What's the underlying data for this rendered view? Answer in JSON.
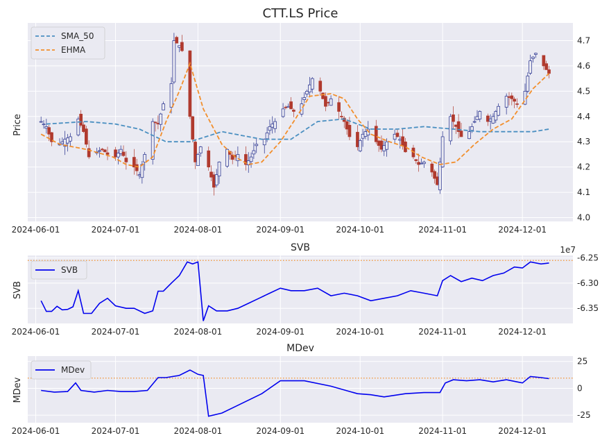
{
  "chart_data": [
    {
      "type": "candlestick",
      "title": "CTT.LS Price",
      "xlabel": "",
      "ylabel": "Price",
      "x_tick_labels": [
        "2024-06-01",
        "2024-07-01",
        "2024-08-01",
        "2024-09-01",
        "2024-10-01",
        "2024-11-01",
        "2024-12-01"
      ],
      "y_ticks": [
        4.0,
        4.1,
        4.2,
        4.3,
        4.4,
        4.5,
        4.6,
        4.7
      ],
      "ylim": [
        3.985,
        4.77
      ],
      "xlim": [
        "2024-05-29",
        "2024-12-20"
      ],
      "grid": true,
      "legend": {
        "placement": "top-left",
        "entries": [
          "SMA_50",
          "EHMA"
        ]
      },
      "colors": {
        "up": "#1f2a8a",
        "down": "#b03a2e",
        "sma": "#4a8fc1",
        "ehma": "#f28e2b"
      },
      "candles_anchor": [
        [
          "2024-06-03",
          4.38
        ],
        [
          "2024-06-05",
          4.36
        ],
        [
          "2024-06-07",
          4.3
        ],
        [
          "2024-06-10",
          4.29
        ],
        [
          "2024-06-12",
          4.31
        ],
        [
          "2024-06-14",
          4.32
        ],
        [
          "2024-06-17",
          4.39
        ],
        [
          "2024-06-19",
          4.34
        ],
        [
          "2024-06-21",
          4.24
        ],
        [
          "2024-06-24",
          4.26
        ],
        [
          "2024-06-26",
          4.27
        ],
        [
          "2024-06-28",
          4.25
        ],
        [
          "2024-07-01",
          4.24
        ],
        [
          "2024-07-03",
          4.27
        ],
        [
          "2024-07-05",
          4.22
        ],
        [
          "2024-07-08",
          4.2
        ],
        [
          "2024-07-10",
          4.17
        ],
        [
          "2024-07-12",
          4.25
        ],
        [
          "2024-07-15",
          4.38
        ],
        [
          "2024-07-17",
          4.37
        ],
        [
          "2024-07-19",
          4.45
        ],
        [
          "2024-07-22",
          4.53
        ],
        [
          "2024-07-23",
          4.7
        ],
        [
          "2024-07-25",
          4.68
        ],
        [
          "2024-07-26",
          4.66
        ],
        [
          "2024-07-29",
          4.4
        ],
        [
          "2024-07-31",
          4.22
        ],
        [
          "2024-08-02",
          4.28
        ],
        [
          "2024-08-05",
          4.2
        ],
        [
          "2024-08-07",
          4.12
        ],
        [
          "2024-08-09",
          4.22
        ],
        [
          "2024-08-12",
          4.27
        ],
        [
          "2024-08-14",
          4.23
        ],
        [
          "2024-08-16",
          4.25
        ],
        [
          "2024-08-19",
          4.21
        ],
        [
          "2024-08-21",
          4.24
        ],
        [
          "2024-08-23",
          4.29
        ],
        [
          "2024-08-26",
          4.31
        ],
        [
          "2024-08-28",
          4.36
        ],
        [
          "2024-08-30",
          4.38
        ],
        [
          "2024-09-02",
          4.43
        ],
        [
          "2024-09-04",
          4.44
        ],
        [
          "2024-09-06",
          4.42
        ],
        [
          "2024-09-09",
          4.45
        ],
        [
          "2024-09-11",
          4.5
        ],
        [
          "2024-09-13",
          4.55
        ],
        [
          "2024-09-16",
          4.5
        ],
        [
          "2024-09-18",
          4.44
        ],
        [
          "2024-09-20",
          4.47
        ],
        [
          "2024-09-23",
          4.42
        ],
        [
          "2024-09-25",
          4.38
        ],
        [
          "2024-09-27",
          4.32
        ],
        [
          "2024-09-30",
          4.28
        ],
        [
          "2024-10-02",
          4.33
        ],
        [
          "2024-10-04",
          4.35
        ],
        [
          "2024-10-07",
          4.3
        ],
        [
          "2024-10-09",
          4.27
        ],
        [
          "2024-10-11",
          4.3
        ],
        [
          "2024-10-14",
          4.33
        ],
        [
          "2024-10-16",
          4.31
        ],
        [
          "2024-10-18",
          4.26
        ],
        [
          "2024-10-21",
          4.24
        ],
        [
          "2024-10-23",
          4.21
        ],
        [
          "2024-10-25",
          4.22
        ],
        [
          "2024-10-28",
          4.18
        ],
        [
          "2024-10-30",
          4.13
        ],
        [
          "2024-10-31",
          4.22
        ],
        [
          "2024-11-01",
          4.32
        ],
        [
          "2024-11-04",
          4.4
        ],
        [
          "2024-11-06",
          4.36
        ],
        [
          "2024-11-08",
          4.32
        ],
        [
          "2024-11-11",
          4.34
        ],
        [
          "2024-11-13",
          4.38
        ],
        [
          "2024-11-15",
          4.42
        ],
        [
          "2024-11-18",
          4.38
        ],
        [
          "2024-11-20",
          4.4
        ],
        [
          "2024-11-22",
          4.44
        ],
        [
          "2024-11-25",
          4.48
        ],
        [
          "2024-11-27",
          4.47
        ],
        [
          "2024-11-29",
          4.45
        ],
        [
          "2024-12-02",
          4.5
        ],
        [
          "2024-12-04",
          4.62
        ],
        [
          "2024-12-06",
          4.65
        ],
        [
          "2024-12-09",
          4.6
        ],
        [
          "2024-12-11",
          4.57
        ]
      ],
      "series": [
        {
          "name": "SMA_50",
          "x": [
            "2024-06-05",
            "2024-06-20",
            "2024-07-01",
            "2024-07-10",
            "2024-07-20",
            "2024-07-29",
            "2024-08-10",
            "2024-08-25",
            "2024-09-05",
            "2024-09-15",
            "2024-09-25",
            "2024-10-05",
            "2024-10-15",
            "2024-10-25",
            "2024-11-05",
            "2024-11-15",
            "2024-11-25",
            "2024-12-05",
            "2024-12-11"
          ],
          "y": [
            4.37,
            4.38,
            4.37,
            4.35,
            4.3,
            4.3,
            4.34,
            4.31,
            4.31,
            4.38,
            4.39,
            4.35,
            4.35,
            4.36,
            4.35,
            4.34,
            4.34,
            4.34,
            4.35
          ]
        },
        {
          "name": "EHMA",
          "x": [
            "2024-06-03",
            "2024-06-10",
            "2024-06-20",
            "2024-06-30",
            "2024-07-05",
            "2024-07-10",
            "2024-07-15",
            "2024-07-20",
            "2024-07-25",
            "2024-07-29",
            "2024-08-03",
            "2024-08-10",
            "2024-08-15",
            "2024-08-20",
            "2024-08-25",
            "2024-09-01",
            "2024-09-06",
            "2024-09-12",
            "2024-09-20",
            "2024-09-25",
            "2024-09-30",
            "2024-10-05",
            "2024-10-12",
            "2024-10-18",
            "2024-10-24",
            "2024-10-31",
            "2024-11-06",
            "2024-11-13",
            "2024-11-20",
            "2024-11-27",
            "2024-12-01",
            "2024-12-05",
            "2024-12-11"
          ],
          "y": [
            4.33,
            4.29,
            4.27,
            4.24,
            4.21,
            4.2,
            4.24,
            4.38,
            4.5,
            4.61,
            4.43,
            4.29,
            4.24,
            4.21,
            4.22,
            4.3,
            4.38,
            4.48,
            4.49,
            4.47,
            4.39,
            4.33,
            4.3,
            4.28,
            4.24,
            4.21,
            4.22,
            4.29,
            4.35,
            4.39,
            4.45,
            4.51,
            4.57
          ]
        }
      ]
    },
    {
      "type": "line",
      "title": "SVB",
      "xlabel": "",
      "ylabel": "SVB",
      "offset_text": "1e7",
      "x_tick_labels": [
        "2024-06-01",
        "2024-07-01",
        "2024-08-01",
        "2024-09-01",
        "2024-10-01",
        "2024-11-01",
        "2024-12-01"
      ],
      "y_ticks": [
        -6.35,
        -6.3,
        -6.25
      ],
      "y_units": "1e7",
      "ylim": [
        -6.38,
        -6.245
      ],
      "grid": true,
      "legend": {
        "placement": "top-left",
        "entries": [
          "SVB"
        ]
      },
      "reference_line": {
        "y": -6.255,
        "style": "dotted",
        "color": "#f28e2b"
      },
      "series": [
        {
          "name": "SVB",
          "x": [
            "2024-06-03",
            "2024-06-05",
            "2024-06-07",
            "2024-06-09",
            "2024-06-11",
            "2024-06-13",
            "2024-06-15",
            "2024-06-17",
            "2024-06-19",
            "2024-06-22",
            "2024-06-25",
            "2024-06-28",
            "2024-07-01",
            "2024-07-05",
            "2024-07-08",
            "2024-07-12",
            "2024-07-15",
            "2024-07-17",
            "2024-07-19",
            "2024-07-22",
            "2024-07-25",
            "2024-07-28",
            "2024-07-30",
            "2024-08-01",
            "2024-08-03",
            "2024-08-05",
            "2024-08-08",
            "2024-08-12",
            "2024-08-16",
            "2024-08-20",
            "2024-08-24",
            "2024-08-28",
            "2024-09-01",
            "2024-09-05",
            "2024-09-10",
            "2024-09-15",
            "2024-09-20",
            "2024-09-25",
            "2024-09-30",
            "2024-10-05",
            "2024-10-10",
            "2024-10-15",
            "2024-10-20",
            "2024-10-25",
            "2024-10-30",
            "2024-11-01",
            "2024-11-04",
            "2024-11-08",
            "2024-11-12",
            "2024-11-16",
            "2024-11-20",
            "2024-11-24",
            "2024-11-28",
            "2024-12-01",
            "2024-12-04",
            "2024-12-08",
            "2024-12-11"
          ],
          "y": [
            -6.335,
            -6.356,
            -6.356,
            -6.346,
            -6.353,
            -6.352,
            -6.347,
            -6.315,
            -6.36,
            -6.36,
            -6.34,
            -6.33,
            -6.345,
            -6.35,
            -6.35,
            -6.36,
            -6.355,
            -6.316,
            -6.316,
            -6.3,
            -6.285,
            -6.258,
            -6.262,
            -6.258,
            -6.375,
            -6.345,
            -6.355,
            -6.355,
            -6.35,
            -6.34,
            -6.33,
            -6.32,
            -6.31,
            -6.315,
            -6.315,
            -6.31,
            -6.325,
            -6.32,
            -6.325,
            -6.335,
            -6.33,
            -6.325,
            -6.315,
            -6.32,
            -6.325,
            -6.295,
            -6.285,
            -6.297,
            -6.29,
            -6.295,
            -6.285,
            -6.28,
            -6.268,
            -6.27,
            -6.258,
            -6.262,
            -6.26
          ]
        }
      ]
    },
    {
      "type": "line",
      "title": "MDev",
      "xlabel": "",
      "ylabel": "MDev",
      "x_tick_labels": [
        "2024-06-01",
        "2024-07-01",
        "2024-08-01",
        "2024-09-01",
        "2024-10-01",
        "2024-11-01",
        "2024-12-01"
      ],
      "y_ticks": [
        -25,
        0,
        25
      ],
      "ylim": [
        -32,
        30
      ],
      "grid": true,
      "legend": {
        "placement": "top-left",
        "entries": [
          "MDev"
        ]
      },
      "reference_line": {
        "y": 9.5,
        "style": "dotted",
        "color": "#f28e2b"
      },
      "series": [
        {
          "name": "MDev",
          "x": [
            "2024-06-03",
            "2024-06-08",
            "2024-06-13",
            "2024-06-16",
            "2024-06-18",
            "2024-06-23",
            "2024-06-28",
            "2024-07-03",
            "2024-07-08",
            "2024-07-13",
            "2024-07-17",
            "2024-07-20",
            "2024-07-25",
            "2024-07-29",
            "2024-08-01",
            "2024-08-03",
            "2024-08-05",
            "2024-08-10",
            "2024-08-15",
            "2024-08-25",
            "2024-09-01",
            "2024-09-10",
            "2024-09-20",
            "2024-09-30",
            "2024-10-05",
            "2024-10-10",
            "2024-10-18",
            "2024-10-25",
            "2024-10-31",
            "2024-11-02",
            "2024-11-05",
            "2024-11-10",
            "2024-11-15",
            "2024-11-20",
            "2024-11-25",
            "2024-11-29",
            "2024-12-01",
            "2024-12-04",
            "2024-12-08",
            "2024-12-11"
          ],
          "y": [
            -2,
            -3.5,
            -3,
            5,
            -2,
            -3.5,
            -2,
            -3,
            -3,
            -2,
            10,
            10,
            12,
            17,
            13,
            12,
            -26,
            -23,
            -17,
            -5,
            7,
            7,
            2,
            -5,
            -6,
            -8,
            -5,
            -4,
            -4,
            5,
            8,
            7,
            8,
            6,
            8,
            6,
            5,
            11,
            10,
            9
          ]
        }
      ]
    }
  ]
}
